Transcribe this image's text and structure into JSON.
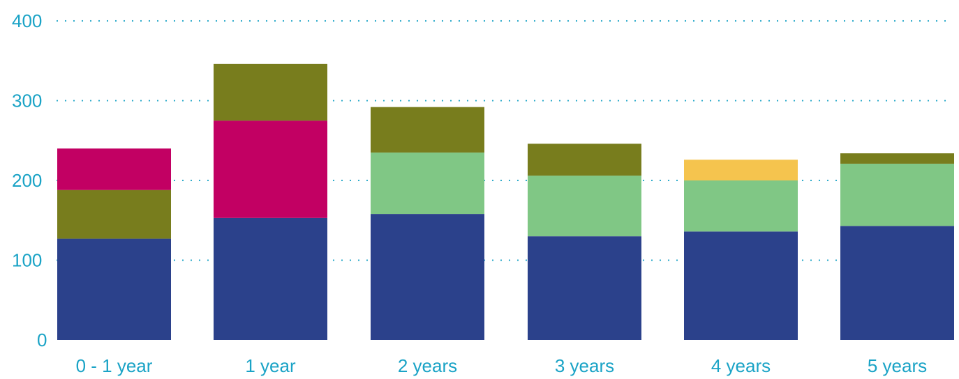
{
  "chart_data": {
    "type": "bar",
    "stacked": true,
    "categories": [
      "0 - 1 year",
      "1 year",
      "2 years",
      "3 years",
      "4 years",
      "5 years"
    ],
    "segments": [
      [
        {
          "value": 127,
          "color": "#2b418b"
        },
        {
          "value": 61,
          "color": "#787d1d"
        },
        {
          "value": 52,
          "color": "#c20063"
        }
      ],
      [
        {
          "value": 153,
          "color": "#2b418b"
        },
        {
          "value": 122,
          "color": "#c20063"
        },
        {
          "value": 71,
          "color": "#787d1d"
        }
      ],
      [
        {
          "value": 158,
          "color": "#2b418b"
        },
        {
          "value": 77,
          "color": "#80c785"
        },
        {
          "value": 57,
          "color": "#787d1d"
        }
      ],
      [
        {
          "value": 130,
          "color": "#2b418b"
        },
        {
          "value": 76,
          "color": "#80c785"
        },
        {
          "value": 40,
          "color": "#787d1d"
        }
      ],
      [
        {
          "value": 136,
          "color": "#2b418b"
        },
        {
          "value": 64,
          "color": "#80c785"
        },
        {
          "value": 26,
          "color": "#f5c44e"
        }
      ],
      [
        {
          "value": 143,
          "color": "#2b418b"
        },
        {
          "value": 78,
          "color": "#80c785"
        },
        {
          "value": 13,
          "color": "#787d1d"
        }
      ]
    ],
    "y_ticks": [
      "0",
      "100",
      "200",
      "300",
      "400"
    ],
    "ylim": [
      0,
      400
    ],
    "grid": true,
    "grid_style": "dotted",
    "title": "",
    "xlabel": "",
    "ylabel": "",
    "colors": {
      "axis_text": "#1aa3c6",
      "grid": "#1aa3c6"
    }
  }
}
